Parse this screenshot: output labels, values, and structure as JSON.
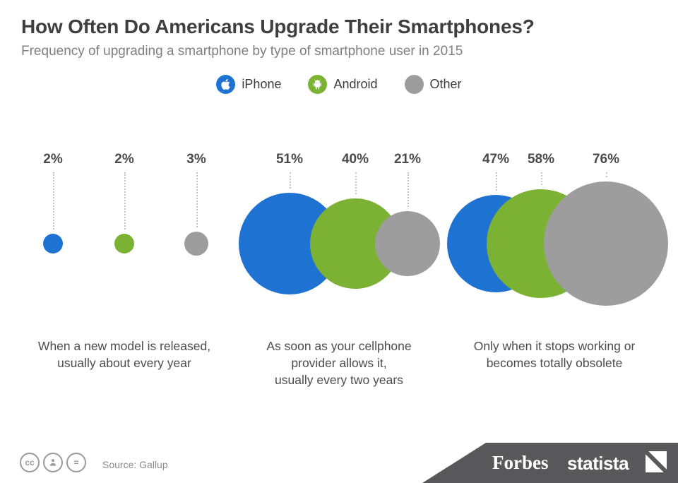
{
  "header": {
    "title": "How Often Do Americans Upgrade Their Smartphones?",
    "subtitle": "Frequency of upgrading a smartphone by type of smartphone user in 2015"
  },
  "chart_data": {
    "type": "bubble",
    "unit": "%",
    "baseline_y": 345,
    "label_y": 215,
    "line_top": 244,
    "radius_scale": 10.1,
    "series": [
      {
        "name": "iPhone",
        "color": "#1e73d2",
        "icon": "apple-icon"
      },
      {
        "name": "Android",
        "color": "#7cb233",
        "icon": "android-icon"
      },
      {
        "name": "Other",
        "color": "#9d9d9d",
        "icon": "circle-icon"
      }
    ],
    "groups": [
      {
        "label": "When a new model is released,\nusually about every year",
        "bubbles": [
          {
            "series": "iPhone",
            "value": 2,
            "cx": 75
          },
          {
            "series": "Android",
            "value": 2,
            "cx": 176
          },
          {
            "series": "Other",
            "value": 3,
            "cx": 278
          }
        ]
      },
      {
        "label": "As soon as your cellphone\nprovider allows it,\nusually every two years",
        "bubbles": [
          {
            "series": "iPhone",
            "value": 51,
            "cx": 410
          },
          {
            "series": "Android",
            "value": 40,
            "cx": 503
          },
          {
            "series": "Other",
            "value": 21,
            "cx": 577
          }
        ]
      },
      {
        "label": "Only when it stops working or\nbecomes totally obsolete",
        "bubbles": [
          {
            "series": "iPhone",
            "value": 47,
            "cx": 702
          },
          {
            "series": "Android",
            "value": 58,
            "cx": 766
          },
          {
            "series": "Other",
            "value": 76,
            "cx": 858
          }
        ]
      }
    ]
  },
  "footer": {
    "source": "Source: Gallup",
    "license_icons": [
      "cc-icon",
      "attribution-person-icon",
      "equal-icon"
    ],
    "cc_text": "cc",
    "equal_text": "=",
    "brand_forbes": "Forbes",
    "brand_statista": "statista"
  }
}
